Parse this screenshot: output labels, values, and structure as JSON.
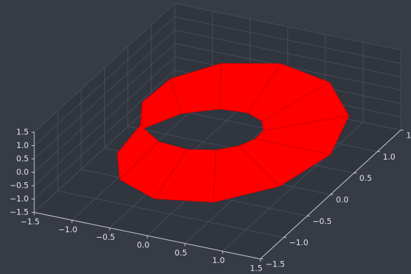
{
  "chart_data": {
    "type": "surface3d",
    "color": "#ff0000",
    "x": [
      [
        0.5,
        0.448,
        0.284,
        0,
        -0.375,
        -0.754,
        -1,
        -0.978,
        -0.625,
        0,
        0.717,
        1.284,
        1.5
      ],
      [
        1.5,
        1.284,
        0.717,
        0,
        -0.625,
        -0.978,
        -1,
        -0.754,
        -0.375,
        0,
        0.284,
        0.448,
        0.5
      ]
    ],
    "y": [
      [
        0,
        0.259,
        0.491,
        0.646,
        0.65,
        0.435,
        0,
        -0.565,
        -1.083,
        -1.354,
        -1.241,
        -0.741,
        0
      ],
      [
        0,
        0.741,
        1.241,
        1.354,
        1.083,
        0.565,
        0,
        -0.435,
        -0.65,
        -0.646,
        -0.491,
        -0.259,
        0
      ]
    ],
    "z": [
      [
        0,
        -0.129,
        -0.25,
        -0.354,
        -0.433,
        -0.483,
        -0.5,
        -0.483,
        -0.433,
        -0.354,
        -0.25,
        -0.129,
        0
      ],
      [
        0,
        0.129,
        0.25,
        0.354,
        0.433,
        0.483,
        0.5,
        0.483,
        0.433,
        0.354,
        0.25,
        0.129,
        0
      ]
    ],
    "xlim": [
      -1.5,
      1.5
    ],
    "ylim": [
      -1.5,
      1.5
    ],
    "zlim": [
      -1.5,
      1.5
    ],
    "xticks": [
      {
        "value": -1.5,
        "label": "−1.5"
      },
      {
        "value": -1.0,
        "label": "−1.0"
      },
      {
        "value": -0.5,
        "label": "−0.5"
      },
      {
        "value": 0,
        "label": "0.0"
      },
      {
        "value": 0.5,
        "label": "0.5"
      },
      {
        "value": 1.0,
        "label": "1.0"
      },
      {
        "value": 1.5,
        "label": "1.5"
      }
    ],
    "yticks": [
      {
        "value": -1.5,
        "label": "−1.5"
      },
      {
        "value": -1.0,
        "label": "−1.0"
      },
      {
        "value": -0.5,
        "label": "−0.5"
      },
      {
        "value": 0,
        "label": "0.0"
      },
      {
        "value": 0.5,
        "label": "0.5"
      },
      {
        "value": 1.0,
        "label": "1.0"
      },
      {
        "value": 1.5,
        "label": "1.5"
      }
    ],
    "zticks": [
      {
        "value": -1.5,
        "label": "−1.5"
      },
      {
        "value": -1.0,
        "label": "−1.0"
      },
      {
        "value": -0.5,
        "label": "−0.5"
      },
      {
        "value": 0,
        "label": "0.0"
      },
      {
        "value": 0.5,
        "label": "0.5"
      },
      {
        "value": 1.0,
        "label": "1.0"
      },
      {
        "value": 1.5,
        "label": "1.5"
      }
    ],
    "grid": true
  }
}
